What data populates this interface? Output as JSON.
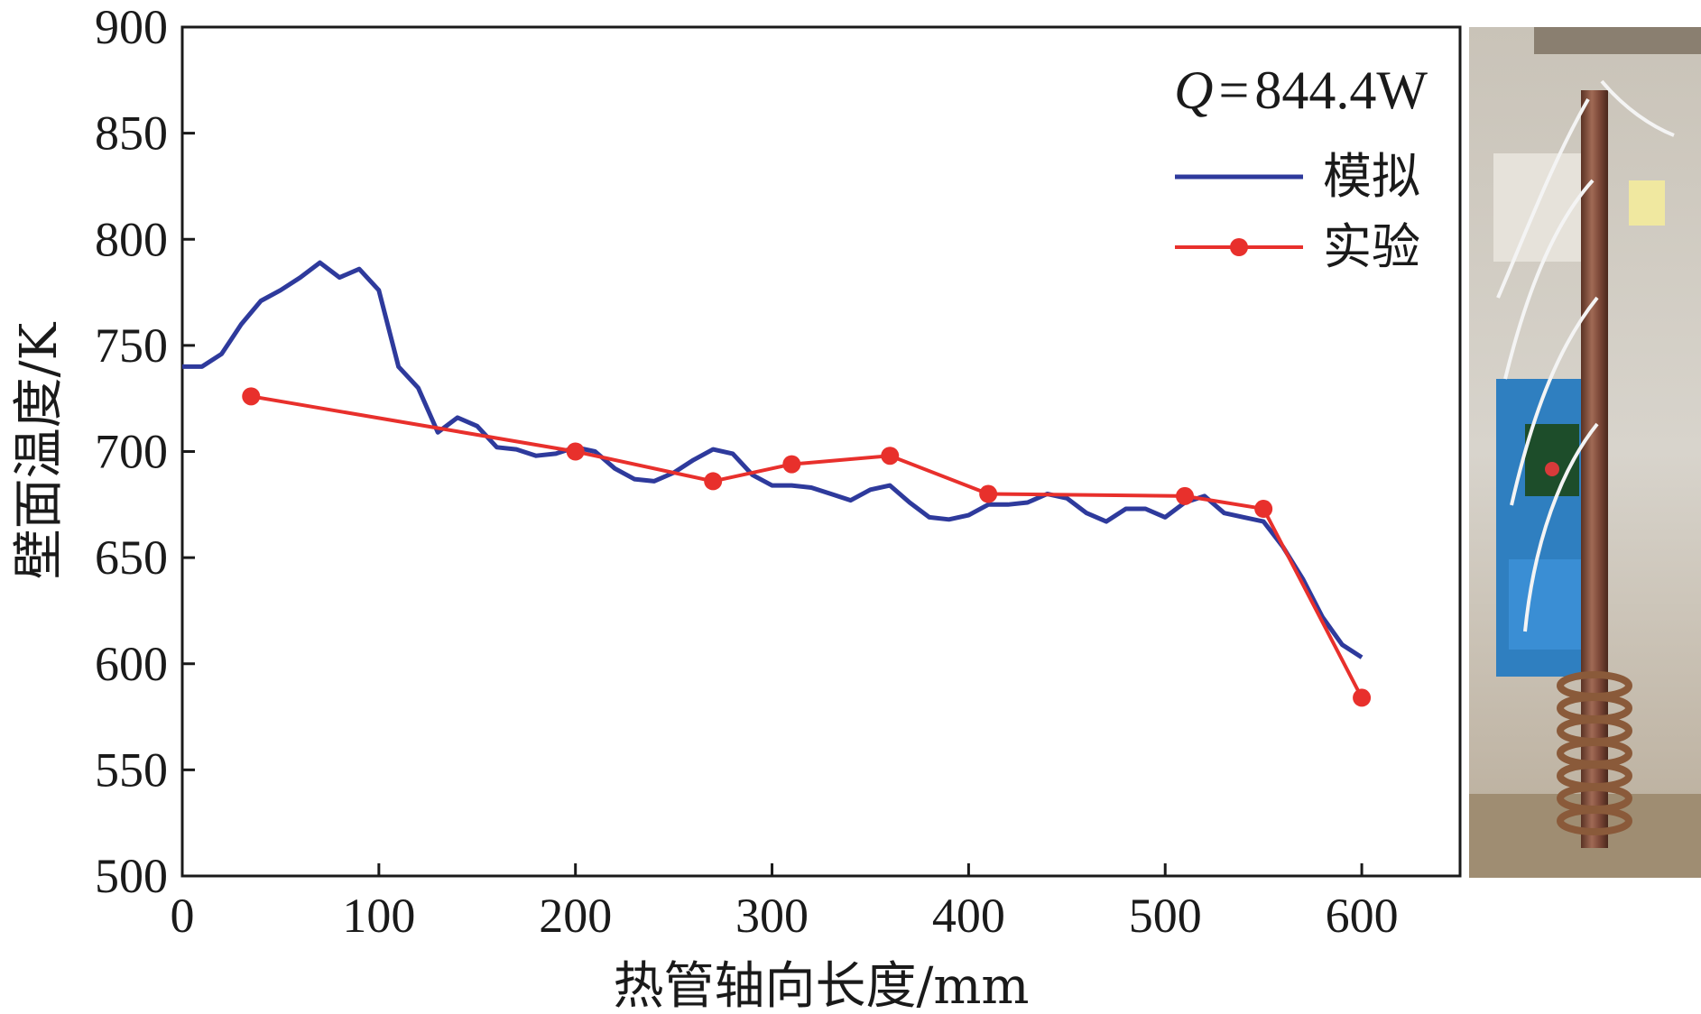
{
  "chart_data": {
    "type": "line",
    "title": "",
    "xlabel": "热管轴向长度/mm",
    "ylabel": "壁面温度/K",
    "xlim": [
      0,
      650
    ],
    "ylim": [
      500,
      900
    ],
    "xticks": [
      0,
      100,
      200,
      300,
      400,
      500,
      600
    ],
    "yticks": [
      500,
      550,
      600,
      650,
      700,
      750,
      800,
      850,
      900
    ],
    "annotation": {
      "var": "Q",
      "equals": "=",
      "value": "844.4W"
    },
    "legend_position": "top-right",
    "series": [
      {
        "name": "模拟",
        "color": "#2e3a9c",
        "markers": false,
        "x": [
          0,
          10,
          20,
          30,
          40,
          50,
          60,
          70,
          80,
          90,
          100,
          110,
          120,
          130,
          140,
          150,
          160,
          170,
          180,
          190,
          200,
          210,
          220,
          230,
          240,
          250,
          260,
          270,
          280,
          290,
          300,
          310,
          320,
          330,
          340,
          350,
          360,
          370,
          380,
          390,
          400,
          410,
          420,
          430,
          440,
          450,
          460,
          470,
          480,
          490,
          500,
          510,
          520,
          530,
          540,
          550,
          560,
          570,
          580,
          590,
          600
        ],
        "y": [
          740,
          740,
          746,
          760,
          771,
          776,
          782,
          789,
          782,
          786,
          776,
          740,
          730,
          709,
          716,
          712,
          702,
          701,
          698,
          699,
          702,
          700,
          692,
          687,
          686,
          690,
          696,
          701,
          699,
          689,
          684,
          684,
          683,
          680,
          677,
          682,
          684,
          676,
          669,
          668,
          670,
          675,
          675,
          676,
          680,
          678,
          671,
          667,
          673,
          673,
          669,
          676,
          679,
          671,
          669,
          667,
          655,
          640,
          622,
          609,
          603
        ]
      },
      {
        "name": "实验",
        "color": "#e8302c",
        "markers": true,
        "x": [
          35,
          200,
          270,
          310,
          360,
          410,
          510,
          550,
          600
        ],
        "y": [
          726,
          700,
          686,
          694,
          698,
          680,
          679,
          673,
          584
        ]
      }
    ]
  },
  "photo": {
    "description_icon": "heat-pipe-experiment-photo"
  }
}
